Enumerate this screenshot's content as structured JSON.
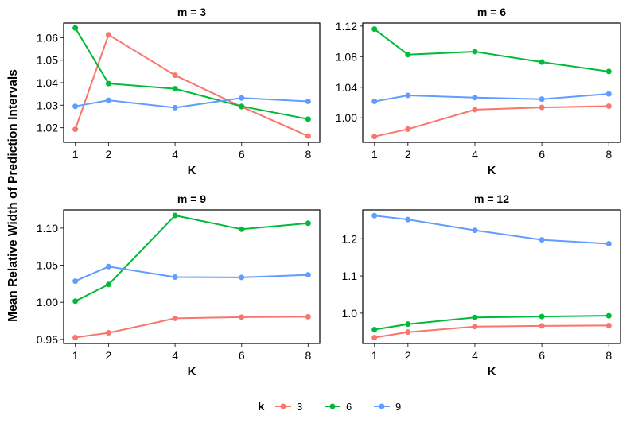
{
  "chart_data": {
    "type": "line",
    "ylabel": "Mean Relative Width of Prediction Intervals",
    "legend": {
      "title": "k",
      "position": "bottom",
      "entries": [
        {
          "label": "3",
          "color": "#F8766D"
        },
        {
          "label": "6",
          "color": "#00BA38"
        },
        {
          "label": "9",
          "color": "#619CFF"
        }
      ]
    },
    "panels": [
      {
        "title": "m = 3",
        "xlabel": "K",
        "x": [
          1,
          2,
          4,
          6,
          8
        ],
        "xticks": [
          "1",
          "2",
          "4",
          "6",
          "8"
        ],
        "ylim": [
          1.0135,
          1.0665
        ],
        "yticks": [
          1.02,
          1.03,
          1.04,
          1.05,
          1.06
        ],
        "yticklabels": [
          "1.02",
          "1.03",
          "1.04",
          "1.05",
          "1.06"
        ],
        "series": [
          {
            "name": "3",
            "color": "#F8766D",
            "values": [
              1.0193,
              1.0613,
              1.0433,
              1.0293,
              1.0163
            ]
          },
          {
            "name": "6",
            "color": "#00BA38",
            "values": [
              1.0643,
              1.0396,
              1.0373,
              1.0295,
              1.0238
            ]
          },
          {
            "name": "9",
            "color": "#619CFF",
            "values": [
              1.0295,
              1.0322,
              1.0289,
              1.0332,
              1.0317
            ]
          }
        ]
      },
      {
        "title": "m = 6",
        "xlabel": "K",
        "x": [
          1,
          2,
          4,
          6,
          8
        ],
        "xticks": [
          "1",
          "2",
          "4",
          "6",
          "8"
        ],
        "ylim": [
          0.968,
          1.124
        ],
        "yticks": [
          1.0,
          1.04,
          1.08,
          1.12
        ],
        "yticklabels": [
          "1.00",
          "1.04",
          "1.08",
          "1.12"
        ],
        "series": [
          {
            "name": "3",
            "color": "#F8766D",
            "values": [
              0.9755,
              0.9853,
              1.0107,
              1.0137,
              1.0153
            ]
          },
          {
            "name": "6",
            "color": "#00BA38",
            "values": [
              1.1161,
              1.0827,
              1.0866,
              1.0729,
              1.0607
            ]
          },
          {
            "name": "9",
            "color": "#619CFF",
            "values": [
              1.0215,
              1.0294,
              1.0265,
              1.0245,
              1.0313
            ]
          }
        ]
      },
      {
        "title": "m = 9",
        "xlabel": "K",
        "x": [
          1,
          2,
          4,
          6,
          8
        ],
        "xticks": [
          "1",
          "2",
          "4",
          "6",
          "8"
        ],
        "ylim": [
          0.9445,
          1.1245
        ],
        "yticks": [
          0.95,
          1.0,
          1.05,
          1.1
        ],
        "yticklabels": [
          "0.95",
          "1.00",
          "1.05",
          "1.10"
        ],
        "series": [
          {
            "name": "3",
            "color": "#F8766D",
            "values": [
              0.9526,
              0.9589,
              0.9784,
              0.98,
              0.9805
            ]
          },
          {
            "name": "6",
            "color": "#00BA38",
            "values": [
              1.0015,
              1.024,
              1.117,
              1.0985,
              1.1065
            ]
          },
          {
            "name": "9",
            "color": "#619CFF",
            "values": [
              1.0285,
              1.0481,
              1.034,
              1.0335,
              1.037
            ]
          }
        ]
      },
      {
        "title": "m = 12",
        "xlabel": "K",
        "x": [
          1,
          2,
          4,
          6,
          8
        ],
        "xticks": [
          "1",
          "2",
          "4",
          "6",
          "8"
        ],
        "ylim": [
          0.9185,
          1.2775
        ],
        "yticks": [
          1.0,
          1.1,
          1.2
        ],
        "yticklabels": [
          "1.0",
          "1.1",
          "1.2"
        ],
        "series": [
          {
            "name": "3",
            "color": "#F8766D",
            "values": [
              0.9345,
              0.9491,
              0.964,
              0.9657,
              0.9667
            ]
          },
          {
            "name": "6",
            "color": "#00BA38",
            "values": [
              0.956,
              0.9705,
              0.9885,
              0.991,
              0.993
            ]
          },
          {
            "name": "9",
            "color": "#619CFF",
            "values": [
              1.262,
              1.2516,
              1.2228,
              1.1972,
              1.1866
            ]
          }
        ]
      }
    ]
  }
}
